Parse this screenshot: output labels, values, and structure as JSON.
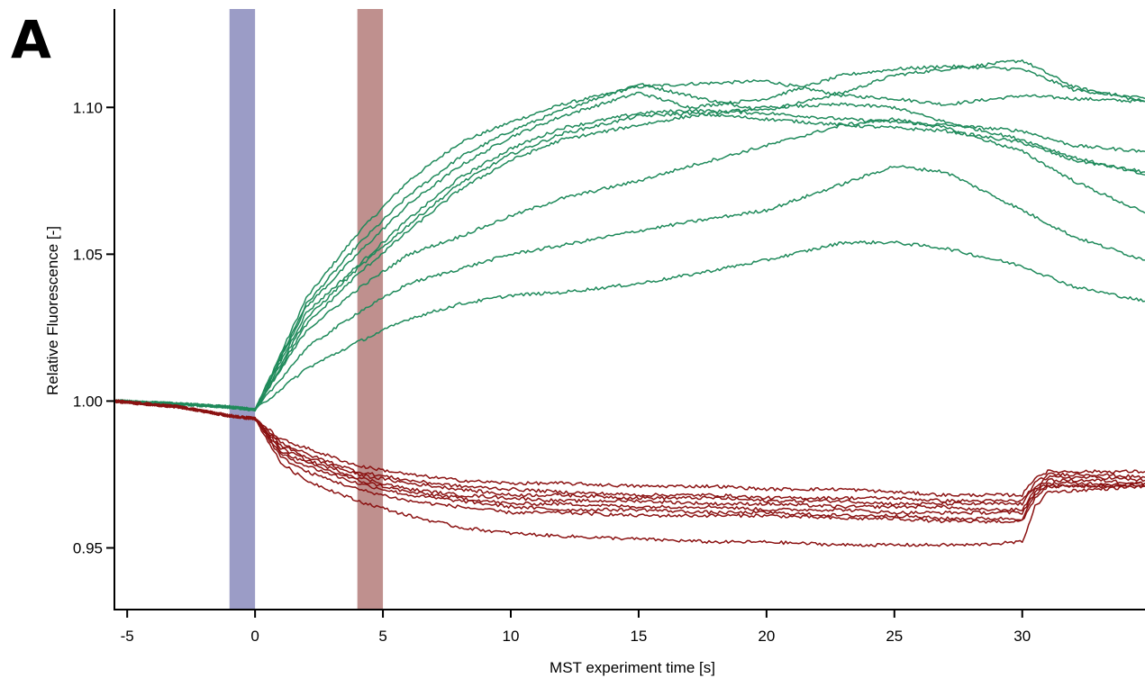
{
  "panel_label": "A",
  "chart_data": {
    "type": "line",
    "xlabel": "MST experiment time [s]",
    "ylabel": "Relative Fluorescence [-]",
    "xlim": [
      -5.5,
      34.8
    ],
    "ylim": [
      0.929,
      1.1335
    ],
    "x_ticks": [
      -5,
      0,
      5,
      10,
      15,
      20,
      25,
      30
    ],
    "x_tick_labels": [
      "-5",
      "0",
      "5",
      "10",
      "15",
      "20",
      "25",
      "30"
    ],
    "y_ticks": [
      0.95,
      1.0,
      1.05,
      1.1
    ],
    "y_tick_labels": [
      "0.95",
      "1.00",
      "1.05",
      "1.10"
    ],
    "grid": false,
    "shaded_regions": [
      {
        "x_start": -1,
        "x_end": 0,
        "color": "#9b9cc6"
      },
      {
        "x_start": 4,
        "x_end": 5,
        "color": "#bf908e"
      }
    ],
    "series_colors": {
      "green": "#1f8a5b",
      "red": "#8b1212"
    },
    "series": [
      {
        "color": "#1f8a5b",
        "x": [
          -5.5,
          -3,
          -1,
          0,
          2,
          4,
          6,
          8,
          10,
          12,
          15,
          17,
          20,
          23,
          25,
          27,
          30,
          32,
          34.8
        ],
        "y": [
          1.0,
          0.999,
          0.998,
          0.997,
          1.035,
          1.057,
          1.075,
          1.088,
          1.095,
          1.101,
          1.107,
          1.108,
          1.109,
          1.104,
          1.103,
          1.101,
          1.104,
          1.103,
          1.102
        ]
      },
      {
        "color": "#1f8a5b",
        "x": [
          -5.5,
          -3,
          -1,
          0,
          2,
          4,
          6,
          8,
          10,
          12,
          15,
          18,
          20,
          23,
          25,
          27,
          30,
          32,
          34.8
        ],
        "y": [
          1.0,
          0.999,
          0.998,
          0.997,
          1.033,
          1.053,
          1.07,
          1.083,
          1.092,
          1.099,
          1.108,
          1.102,
          1.099,
          1.105,
          1.111,
          1.113,
          1.116,
          1.107,
          1.102
        ]
      },
      {
        "color": "#1f8a5b",
        "x": [
          -5.5,
          -3,
          -1,
          0,
          2,
          4,
          6,
          8,
          10,
          12,
          15,
          17,
          20,
          23,
          25,
          27,
          30,
          32,
          34.8
        ],
        "y": [
          1.0,
          0.999,
          0.998,
          0.997,
          1.032,
          1.05,
          1.067,
          1.08,
          1.09,
          1.097,
          1.105,
          1.1,
          1.103,
          1.111,
          1.113,
          1.114,
          1.113,
          1.106,
          1.103
        ]
      },
      {
        "color": "#1f8a5b",
        "x": [
          -5.5,
          -3,
          -1,
          0,
          2,
          4,
          6,
          8,
          10,
          12,
          15,
          17,
          20,
          23,
          25,
          27,
          30,
          32,
          34.8
        ],
        "y": [
          1.0,
          0.999,
          0.998,
          0.997,
          1.03,
          1.046,
          1.062,
          1.076,
          1.086,
          1.093,
          1.098,
          1.099,
          1.098,
          1.096,
          1.095,
          1.094,
          1.092,
          1.087,
          1.085
        ]
      },
      {
        "color": "#1f8a5b",
        "x": [
          -5.5,
          -3,
          -1,
          0,
          2,
          4,
          6,
          8,
          10,
          12,
          15,
          17,
          20,
          23,
          25,
          27,
          30,
          32,
          34.8
        ],
        "y": [
          1.0,
          0.999,
          0.998,
          0.997,
          1.028,
          1.045,
          1.06,
          1.074,
          1.084,
          1.091,
          1.097,
          1.098,
          1.096,
          1.094,
          1.093,
          1.092,
          1.088,
          1.082,
          1.078
        ]
      },
      {
        "color": "#1f8a5b",
        "x": [
          -5.5,
          -3,
          -1,
          0,
          2,
          4,
          6,
          8,
          10,
          12,
          15,
          17,
          20,
          23,
          25,
          27,
          30,
          32,
          34.8
        ],
        "y": [
          1.0,
          0.999,
          0.998,
          0.997,
          1.026,
          1.043,
          1.058,
          1.072,
          1.082,
          1.089,
          1.094,
          1.097,
          1.1,
          1.101,
          1.1,
          1.095,
          1.089,
          1.083,
          1.077
        ]
      },
      {
        "color": "#1f8a5b",
        "x": [
          -5.5,
          -3,
          -1,
          0,
          2,
          4,
          6,
          8,
          10,
          12,
          15,
          17,
          20,
          23,
          25,
          27,
          30,
          32,
          34.8
        ],
        "y": [
          1.0,
          0.999,
          0.998,
          0.997,
          1.024,
          1.038,
          1.05,
          1.056,
          1.063,
          1.069,
          1.075,
          1.08,
          1.087,
          1.094,
          1.096,
          1.093,
          1.085,
          1.075,
          1.064
        ]
      },
      {
        "color": "#1f8a5b",
        "x": [
          -5.5,
          -3,
          -1,
          0,
          2,
          4,
          6,
          8,
          10,
          12,
          15,
          17,
          20,
          23,
          25,
          27,
          30,
          32,
          34.8
        ],
        "y": [
          1.0,
          0.999,
          0.998,
          0.997,
          1.018,
          1.03,
          1.04,
          1.045,
          1.05,
          1.053,
          1.058,
          1.061,
          1.065,
          1.074,
          1.08,
          1.078,
          1.065,
          1.056,
          1.048
        ]
      },
      {
        "color": "#1f8a5b",
        "x": [
          -5.5,
          -3,
          -1,
          0,
          2,
          4,
          6,
          8,
          10,
          12,
          15,
          17,
          20,
          23,
          25,
          27,
          30,
          32,
          34.8
        ],
        "y": [
          1.0,
          0.999,
          0.998,
          0.997,
          1.011,
          1.02,
          1.028,
          1.033,
          1.036,
          1.037,
          1.04,
          1.043,
          1.048,
          1.054,
          1.054,
          1.052,
          1.046,
          1.039,
          1.034
        ]
      },
      {
        "color": "#8b1212",
        "x": [
          -5.5,
          -3,
          -1,
          0,
          1,
          2,
          4,
          6,
          8,
          10,
          12,
          15,
          18,
          20,
          23,
          25,
          27,
          28,
          30,
          30.5,
          31,
          33,
          34.8
        ],
        "y": [
          1.0,
          0.998,
          0.995,
          0.994,
          0.987,
          0.984,
          0.978,
          0.975,
          0.973,
          0.972,
          0.972,
          0.971,
          0.971,
          0.97,
          0.97,
          0.969,
          0.968,
          0.968,
          0.968,
          0.974,
          0.976,
          0.976,
          0.976
        ]
      },
      {
        "color": "#8b1212",
        "x": [
          -5.5,
          -3,
          -1,
          0,
          1,
          2,
          4,
          6,
          8,
          10,
          12,
          15,
          18,
          20,
          23,
          25,
          27,
          28,
          30,
          30.5,
          31,
          33,
          34.8
        ],
        "y": [
          1.0,
          0.998,
          0.995,
          0.994,
          0.986,
          0.982,
          0.976,
          0.973,
          0.971,
          0.97,
          0.969,
          0.968,
          0.968,
          0.967,
          0.967,
          0.967,
          0.966,
          0.966,
          0.966,
          0.972,
          0.975,
          0.975,
          0.974
        ]
      },
      {
        "color": "#8b1212",
        "x": [
          -5.5,
          -3,
          -1,
          0,
          1,
          2,
          4,
          6,
          8,
          10,
          12,
          15,
          18,
          20,
          23,
          25,
          27,
          28,
          30,
          30.5,
          31,
          33,
          34.8
        ],
        "y": [
          1.0,
          0.998,
          0.995,
          0.994,
          0.985,
          0.981,
          0.975,
          0.972,
          0.97,
          0.968,
          0.968,
          0.967,
          0.967,
          0.966,
          0.966,
          0.965,
          0.965,
          0.965,
          0.965,
          0.971,
          0.974,
          0.974,
          0.973
        ]
      },
      {
        "color": "#8b1212",
        "x": [
          -5.5,
          -3,
          -1,
          0,
          1,
          2,
          4,
          6,
          8,
          10,
          12,
          15,
          18,
          20,
          23,
          25,
          27,
          28,
          30,
          30.5,
          31,
          33,
          34.8
        ],
        "y": [
          1.0,
          0.998,
          0.995,
          0.994,
          0.984,
          0.98,
          0.974,
          0.97,
          0.968,
          0.967,
          0.966,
          0.966,
          0.965,
          0.965,
          0.964,
          0.964,
          0.964,
          0.963,
          0.963,
          0.97,
          0.973,
          0.973,
          0.972
        ]
      },
      {
        "color": "#8b1212",
        "x": [
          -5.5,
          -3,
          -1,
          0,
          1,
          2,
          4,
          6,
          8,
          10,
          12,
          15,
          18,
          20,
          23,
          25,
          27,
          28,
          30,
          30.5,
          31,
          33,
          34.8
        ],
        "y": [
          1.0,
          0.998,
          0.995,
          0.994,
          0.983,
          0.979,
          0.973,
          0.969,
          0.967,
          0.965,
          0.965,
          0.964,
          0.964,
          0.963,
          0.963,
          0.962,
          0.962,
          0.962,
          0.962,
          0.969,
          0.972,
          0.972,
          0.971
        ]
      },
      {
        "color": "#8b1212",
        "x": [
          -5.5,
          -3,
          -1,
          0,
          1,
          2,
          4,
          6,
          8,
          10,
          12,
          15,
          18,
          20,
          23,
          25,
          27,
          28,
          30,
          30.5,
          31,
          33,
          34.8
        ],
        "y": [
          1.0,
          0.998,
          0.995,
          0.994,
          0.982,
          0.978,
          0.972,
          0.968,
          0.966,
          0.964,
          0.963,
          0.963,
          0.962,
          0.962,
          0.961,
          0.961,
          0.96,
          0.96,
          0.96,
          0.968,
          0.971,
          0.971,
          0.971
        ]
      },
      {
        "color": "#8b1212",
        "x": [
          -5.5,
          -3,
          -1,
          0,
          1,
          2,
          4,
          6,
          8,
          10,
          12,
          15,
          18,
          20,
          23,
          25,
          27,
          28,
          30,
          30.5,
          31,
          33,
          34.8
        ],
        "y": [
          1.0,
          0.998,
          0.995,
          0.994,
          0.981,
          0.976,
          0.97,
          0.966,
          0.964,
          0.962,
          0.962,
          0.961,
          0.961,
          0.961,
          0.96,
          0.96,
          0.959,
          0.959,
          0.959,
          0.967,
          0.971,
          0.971,
          0.972
        ]
      },
      {
        "color": "#8b1212",
        "x": [
          -5.5,
          -3,
          -1,
          0,
          1,
          2,
          4,
          6,
          8,
          10,
          12,
          15,
          18,
          20,
          23,
          25,
          27,
          28,
          30,
          30.5,
          31,
          33,
          34.8
        ],
        "y": [
          1.0,
          0.998,
          0.995,
          0.994,
          0.979,
          0.973,
          0.966,
          0.961,
          0.957,
          0.955,
          0.954,
          0.953,
          0.952,
          0.952,
          0.951,
          0.951,
          0.951,
          0.951,
          0.952,
          0.964,
          0.969,
          0.97,
          0.971
        ]
      }
    ]
  }
}
